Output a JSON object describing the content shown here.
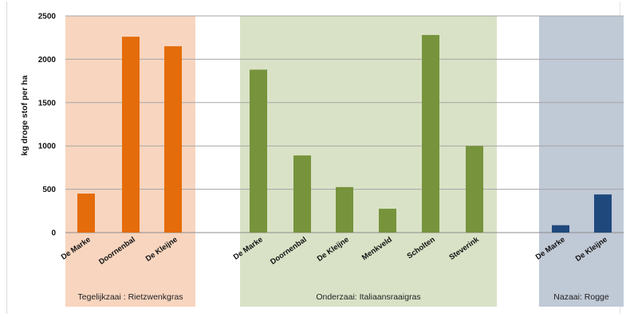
{
  "chart_data": {
    "type": "bar",
    "title": "",
    "ylabel": "kg droge stof per ha",
    "xlabel": "",
    "ylim": [
      0,
      2500
    ],
    "yticks": [
      0,
      500,
      1000,
      1500,
      2000,
      2500
    ],
    "grid": true,
    "groups": [
      {
        "label": "Tegelijkzaai : Rietzwenkgras",
        "bar_color": "#e46c0a",
        "band_color": "#f8d5bf",
        "categories": [
          "De Marke",
          "Doornenbal",
          "De Kleijne"
        ],
        "values": [
          450,
          2260,
          2150
        ]
      },
      {
        "label": "Onderzaai: Italiaansraaigras",
        "bar_color": "#77933c",
        "band_color": "#d9e2c6",
        "categories": [
          "De Marke",
          "Doornenbal",
          "De Kleijne",
          "Menkveld",
          "Scholten",
          "Steverink"
        ],
        "values": [
          1880,
          890,
          525,
          275,
          2280,
          1000
        ]
      },
      {
        "label": "Nazaai: Rogge",
        "bar_color": "#1f497d",
        "band_color": "#c0c9d6",
        "categories": [
          "De Marke",
          "De Kleijne"
        ],
        "values": [
          85,
          440
        ]
      }
    ]
  }
}
